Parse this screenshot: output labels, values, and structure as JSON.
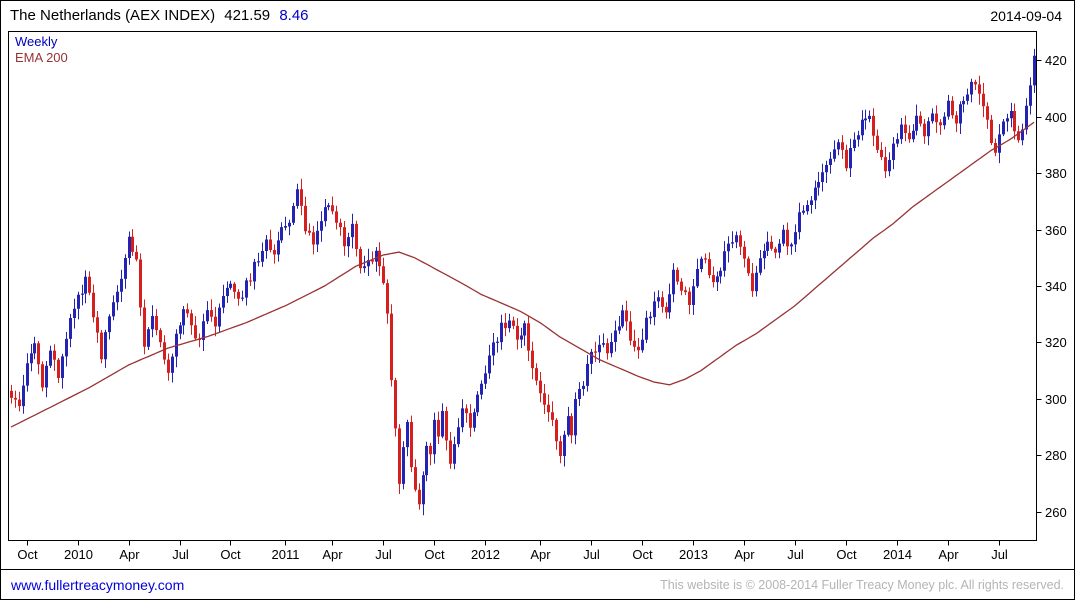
{
  "header": {
    "title": "The Netherlands (AEX INDEX)",
    "last_price": "421.59",
    "change": "8.46",
    "date": "2014-09-04"
  },
  "legend": {
    "series_label": "Weekly",
    "ema_label": "EMA 200"
  },
  "footer": {
    "link": "www.fullertreacymoney.com",
    "copyright": "This website is © 2008-2014 Fuller Treacy Money plc. All rights reserved."
  },
  "colors": {
    "up": "#2424b4",
    "down": "#d62020",
    "ema": "#993333",
    "title_change": "#0000cc",
    "legend_series": "#0000bb",
    "link": "#0000dd",
    "copyright": "#b4b4b4",
    "frame": "#000000"
  },
  "chart_data": {
    "type": "candlestick",
    "title": "The Netherlands (AEX INDEX)",
    "timeframe": "Weekly",
    "overlay": "EMA 200",
    "as_of": "2014-09-04",
    "last_close": 421.59,
    "change": 8.46,
    "ylim": [
      250,
      430
    ],
    "yticks": [
      260,
      280,
      300,
      320,
      340,
      360,
      380,
      400,
      420
    ],
    "weeks_total": 262,
    "xticks": [
      {
        "label": "Oct",
        "week": 4
      },
      {
        "label": "2010",
        "week": 17
      },
      {
        "label": "Apr",
        "week": 30
      },
      {
        "label": "Jul",
        "week": 43
      },
      {
        "label": "Oct",
        "week": 56
      },
      {
        "label": "2011",
        "week": 70
      },
      {
        "label": "Apr",
        "week": 82
      },
      {
        "label": "Jul",
        "week": 95
      },
      {
        "label": "Oct",
        "week": 108
      },
      {
        "label": "2012",
        "week": 121
      },
      {
        "label": "Apr",
        "week": 135
      },
      {
        "label": "Jul",
        "week": 148
      },
      {
        "label": "Oct",
        "week": 161
      },
      {
        "label": "2013",
        "week": 174
      },
      {
        "label": "Apr",
        "week": 187
      },
      {
        "label": "Jul",
        "week": 200
      },
      {
        "label": "Oct",
        "week": 213
      },
      {
        "label": "2014",
        "week": 226
      },
      {
        "label": "Apr",
        "week": 239
      },
      {
        "label": "Jul",
        "week": 252
      }
    ],
    "close_keypoints": [
      [
        0,
        302
      ],
      [
        2,
        297
      ],
      [
        4,
        313
      ],
      [
        6,
        318
      ],
      [
        8,
        304
      ],
      [
        10,
        316
      ],
      [
        12,
        309
      ],
      [
        14,
        322
      ],
      [
        17,
        336
      ],
      [
        19,
        342
      ],
      [
        21,
        329
      ],
      [
        23,
        316
      ],
      [
        26,
        333
      ],
      [
        28,
        341
      ],
      [
        30,
        357
      ],
      [
        32,
        350
      ],
      [
        34,
        317
      ],
      [
        36,
        331
      ],
      [
        38,
        318
      ],
      [
        40,
        311
      ],
      [
        42,
        321
      ],
      [
        44,
        333
      ],
      [
        46,
        326
      ],
      [
        48,
        321
      ],
      [
        50,
        331
      ],
      [
        52,
        327
      ],
      [
        54,
        336
      ],
      [
        56,
        342
      ],
      [
        58,
        335
      ],
      [
        60,
        340
      ],
      [
        62,
        347
      ],
      [
        65,
        355
      ],
      [
        67,
        351
      ],
      [
        69,
        359
      ],
      [
        71,
        364
      ],
      [
        73,
        374
      ],
      [
        75,
        361
      ],
      [
        77,
        354
      ],
      [
        79,
        365
      ],
      [
        81,
        369
      ],
      [
        83,
        362
      ],
      [
        85,
        356
      ],
      [
        87,
        361
      ],
      [
        89,
        345
      ],
      [
        91,
        349
      ],
      [
        93,
        352
      ],
      [
        95,
        341
      ],
      [
        96,
        331
      ],
      [
        97,
        306
      ],
      [
        98,
        289
      ],
      [
        99,
        271
      ],
      [
        100,
        283
      ],
      [
        101,
        291
      ],
      [
        102,
        277
      ],
      [
        103,
        267
      ],
      [
        104,
        262
      ],
      [
        105,
        273
      ],
      [
        106,
        285
      ],
      [
        107,
        279
      ],
      [
        108,
        291
      ],
      [
        109,
        285
      ],
      [
        110,
        296
      ],
      [
        111,
        287
      ],
      [
        112,
        277
      ],
      [
        113,
        285
      ],
      [
        115,
        296
      ],
      [
        117,
        290
      ],
      [
        119,
        301
      ],
      [
        121,
        309
      ],
      [
        123,
        319
      ],
      [
        125,
        325
      ],
      [
        127,
        329
      ],
      [
        129,
        319
      ],
      [
        131,
        325
      ],
      [
        133,
        311
      ],
      [
        135,
        304
      ],
      [
        137,
        295
      ],
      [
        139,
        287
      ],
      [
        140,
        280
      ],
      [
        141,
        286
      ],
      [
        142,
        293
      ],
      [
        143,
        287
      ],
      [
        144,
        298
      ],
      [
        146,
        306
      ],
      [
        148,
        315
      ],
      [
        150,
        321
      ],
      [
        152,
        317
      ],
      [
        154,
        324
      ],
      [
        156,
        331
      ],
      [
        158,
        322
      ],
      [
        160,
        317
      ],
      [
        162,
        327
      ],
      [
        165,
        336
      ],
      [
        167,
        331
      ],
      [
        169,
        344
      ],
      [
        171,
        339
      ],
      [
        173,
        335
      ],
      [
        175,
        346
      ],
      [
        177,
        350
      ],
      [
        179,
        341
      ],
      [
        181,
        346
      ],
      [
        183,
        355
      ],
      [
        185,
        360
      ],
      [
        187,
        349
      ],
      [
        189,
        338
      ],
      [
        191,
        348
      ],
      [
        193,
        356
      ],
      [
        195,
        351
      ],
      [
        197,
        358
      ],
      [
        199,
        353
      ],
      [
        201,
        365
      ],
      [
        203,
        369
      ],
      [
        205,
        375
      ],
      [
        207,
        379
      ],
      [
        209,
        386
      ],
      [
        211,
        390
      ],
      [
        213,
        383
      ],
      [
        215,
        391
      ],
      [
        217,
        397
      ],
      [
        219,
        401
      ],
      [
        221,
        389
      ],
      [
        223,
        380
      ],
      [
        225,
        391
      ],
      [
        227,
        397
      ],
      [
        229,
        393
      ],
      [
        231,
        399
      ],
      [
        233,
        394
      ],
      [
        235,
        402
      ],
      [
        237,
        398
      ],
      [
        239,
        404
      ],
      [
        241,
        399
      ],
      [
        243,
        407
      ],
      [
        245,
        412
      ],
      [
        247,
        407
      ],
      [
        249,
        399
      ],
      [
        250,
        391
      ],
      [
        251,
        388
      ],
      [
        253,
        397
      ],
      [
        255,
        401
      ],
      [
        256,
        396
      ],
      [
        257,
        391
      ],
      [
        258,
        397
      ],
      [
        259,
        404
      ],
      [
        260,
        409
      ],
      [
        261,
        421.59
      ]
    ],
    "ema_keypoints": [
      [
        0,
        290
      ],
      [
        10,
        297
      ],
      [
        20,
        304
      ],
      [
        30,
        312
      ],
      [
        40,
        318
      ],
      [
        50,
        322
      ],
      [
        60,
        327
      ],
      [
        70,
        333
      ],
      [
        80,
        340
      ],
      [
        88,
        347
      ],
      [
        95,
        351
      ],
      [
        99,
        352
      ],
      [
        103,
        350
      ],
      [
        107,
        347
      ],
      [
        111,
        344
      ],
      [
        115,
        341
      ],
      [
        120,
        337
      ],
      [
        125,
        334
      ],
      [
        130,
        331
      ],
      [
        135,
        327
      ],
      [
        140,
        322
      ],
      [
        145,
        318
      ],
      [
        150,
        314
      ],
      [
        155,
        311
      ],
      [
        160,
        308
      ],
      [
        164,
        306
      ],
      [
        168,
        305
      ],
      [
        172,
        307
      ],
      [
        176,
        310
      ],
      [
        180,
        314
      ],
      [
        185,
        319
      ],
      [
        190,
        323
      ],
      [
        195,
        328
      ],
      [
        200,
        333
      ],
      [
        205,
        339
      ],
      [
        210,
        345
      ],
      [
        215,
        351
      ],
      [
        220,
        357
      ],
      [
        225,
        362
      ],
      [
        230,
        368
      ],
      [
        235,
        373
      ],
      [
        240,
        378
      ],
      [
        245,
        383
      ],
      [
        250,
        388
      ],
      [
        255,
        392
      ],
      [
        261,
        398
      ]
    ]
  }
}
